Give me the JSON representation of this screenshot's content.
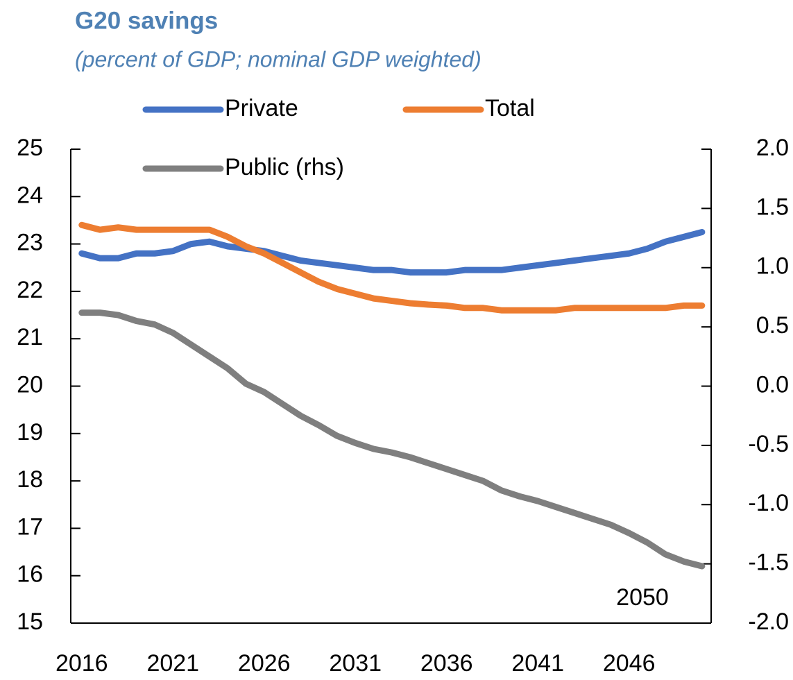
{
  "chart_data": {
    "type": "line",
    "title": "G20 savings",
    "subtitle": "(percent of GDP; nominal GDP weighted)",
    "annotation": "2050",
    "x": [
      2016,
      2017,
      2018,
      2019,
      2020,
      2021,
      2022,
      2023,
      2024,
      2025,
      2026,
      2027,
      2028,
      2029,
      2030,
      2031,
      2032,
      2033,
      2034,
      2035,
      2036,
      2037,
      2038,
      2039,
      2040,
      2041,
      2042,
      2043,
      2044,
      2045,
      2046,
      2047,
      2048,
      2049,
      2050
    ],
    "xlim": [
      2015.4,
      2050.5
    ],
    "xticks": [
      2016,
      2021,
      2026,
      2031,
      2036,
      2041,
      2046
    ],
    "ylim": [
      15,
      25
    ],
    "yticks": [
      15,
      16,
      17,
      18,
      19,
      20,
      21,
      22,
      23,
      24,
      25
    ],
    "y2lim": [
      -2,
      2
    ],
    "y2ticks": [
      {
        "value": -2,
        "label": "-2.0"
      },
      {
        "value": -1.5,
        "label": "-1.5"
      },
      {
        "value": -1,
        "label": "-1.0"
      },
      {
        "value": -0.5,
        "label": "-0.5"
      },
      {
        "value": 0,
        "label": "0.0"
      },
      {
        "value": 0.5,
        "label": "0.5"
      },
      {
        "value": 1,
        "label": "1.0"
      },
      {
        "value": 1.5,
        "label": "1.5"
      },
      {
        "value": 2,
        "label": "2.0"
      }
    ],
    "grid": false,
    "series": [
      {
        "name": "Private",
        "color": "#4472c4",
        "values": [
          22.8,
          22.7,
          22.7,
          22.8,
          22.8,
          22.85,
          23.0,
          23.05,
          22.95,
          22.9,
          22.85,
          22.75,
          22.65,
          22.6,
          22.55,
          22.5,
          22.45,
          22.45,
          22.4,
          22.4,
          22.4,
          22.45,
          22.45,
          22.45,
          22.5,
          22.55,
          22.6,
          22.65,
          22.7,
          22.75,
          22.8,
          22.9,
          23.05,
          23.15,
          23.25
        ]
      },
      {
        "name": "Total",
        "color": "#ed7d31",
        "values": [
          23.4,
          23.3,
          23.35,
          23.3,
          23.3,
          23.3,
          23.3,
          23.3,
          23.15,
          22.95,
          22.8,
          22.6,
          22.4,
          22.2,
          22.05,
          21.95,
          21.85,
          21.8,
          21.75,
          21.72,
          21.7,
          21.65,
          21.65,
          21.6,
          21.6,
          21.6,
          21.6,
          21.65,
          21.65,
          21.65,
          21.65,
          21.65,
          21.65,
          21.7,
          21.7
        ]
      },
      {
        "name": "Public (rhs)",
        "color": "#7f7f7f",
        "axis": "y2",
        "values": [
          0.62,
          0.62,
          0.6,
          0.55,
          0.52,
          0.45,
          0.35,
          0.25,
          0.15,
          0.02,
          -0.05,
          -0.15,
          -0.25,
          -0.33,
          -0.42,
          -0.48,
          -0.53,
          -0.56,
          -0.6,
          -0.65,
          -0.7,
          -0.75,
          -0.8,
          -0.88,
          -0.93,
          -0.97,
          -1.02,
          -1.07,
          -1.12,
          -1.17,
          -1.24,
          -1.32,
          -1.42,
          -1.48,
          -1.52
        ]
      }
    ]
  }
}
